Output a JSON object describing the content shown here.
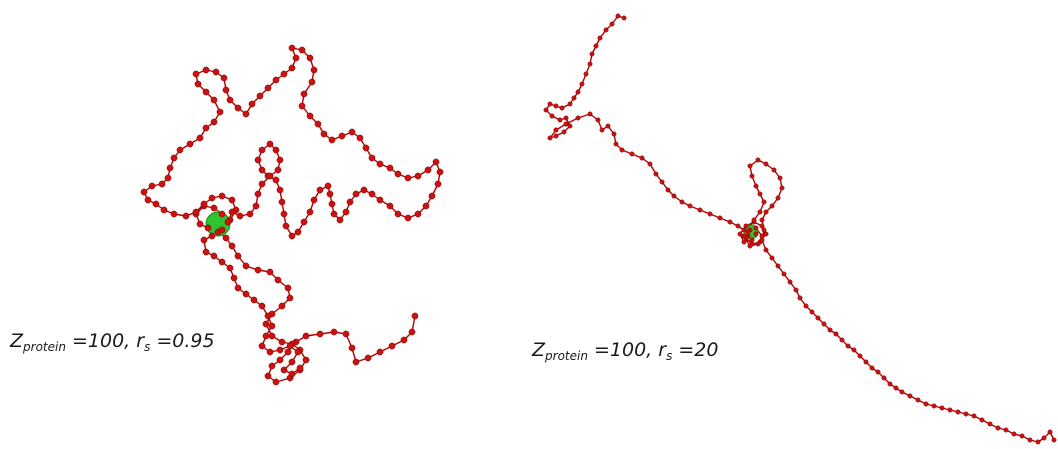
{
  "panels": [
    {
      "label": {
        "z": "Z",
        "z_sub": "protein",
        "z_value": " =100, ",
        "r": "r",
        "r_sub": "s",
        "r_value": " =0.95"
      },
      "colors": {
        "chain": "#b30000",
        "bead": "#cc1111",
        "protein": "#2ec42e"
      }
    },
    {
      "label": {
        "z": "Z",
        "z_sub": "protein",
        "z_value": " =100, ",
        "r": "r",
        "r_sub": "s",
        "r_value": " =20"
      },
      "colors": {
        "chain": "#b30000",
        "bead": "#cc1111",
        "protein": "#2ec42e"
      }
    }
  ]
}
